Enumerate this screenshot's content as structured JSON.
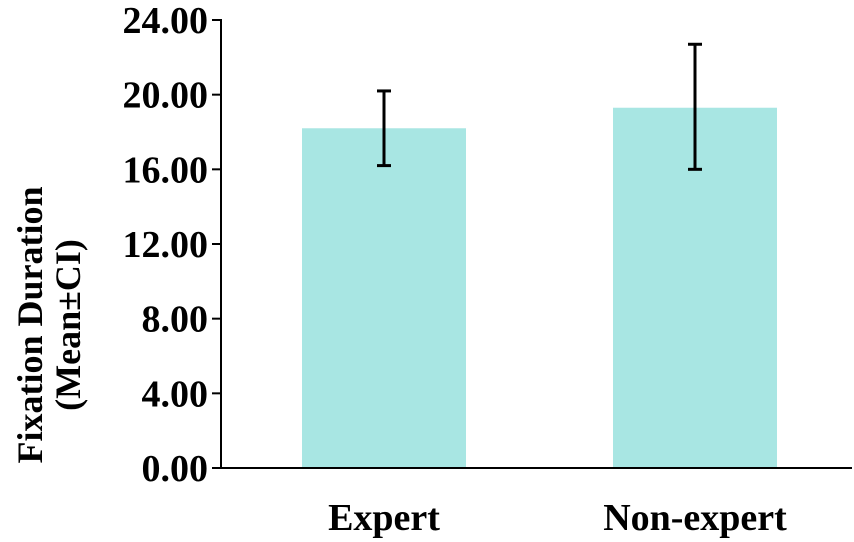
{
  "chart_data": {
    "type": "bar",
    "title": "",
    "xlabel": "",
    "ylabel_lines": [
      "Fixation Duration",
      "(Mean±CI)"
    ],
    "categories": [
      "Expert",
      "Non-expert"
    ],
    "values": [
      18.2,
      19.3
    ],
    "error_low": [
      16.2,
      16.0
    ],
    "error_high": [
      20.2,
      22.7
    ],
    "ylim": [
      0,
      24
    ],
    "yticks": [
      0,
      4,
      8,
      12,
      16,
      20,
      24
    ],
    "ytick_labels": [
      "0.00",
      "4.00",
      "8.00",
      "12.00",
      "16.00",
      "20.00",
      "24.00"
    ],
    "grid": false,
    "legend": "none",
    "colors": {
      "bar": "#a8e6e3",
      "axis": "#000000",
      "error_bar": "#000000"
    }
  }
}
